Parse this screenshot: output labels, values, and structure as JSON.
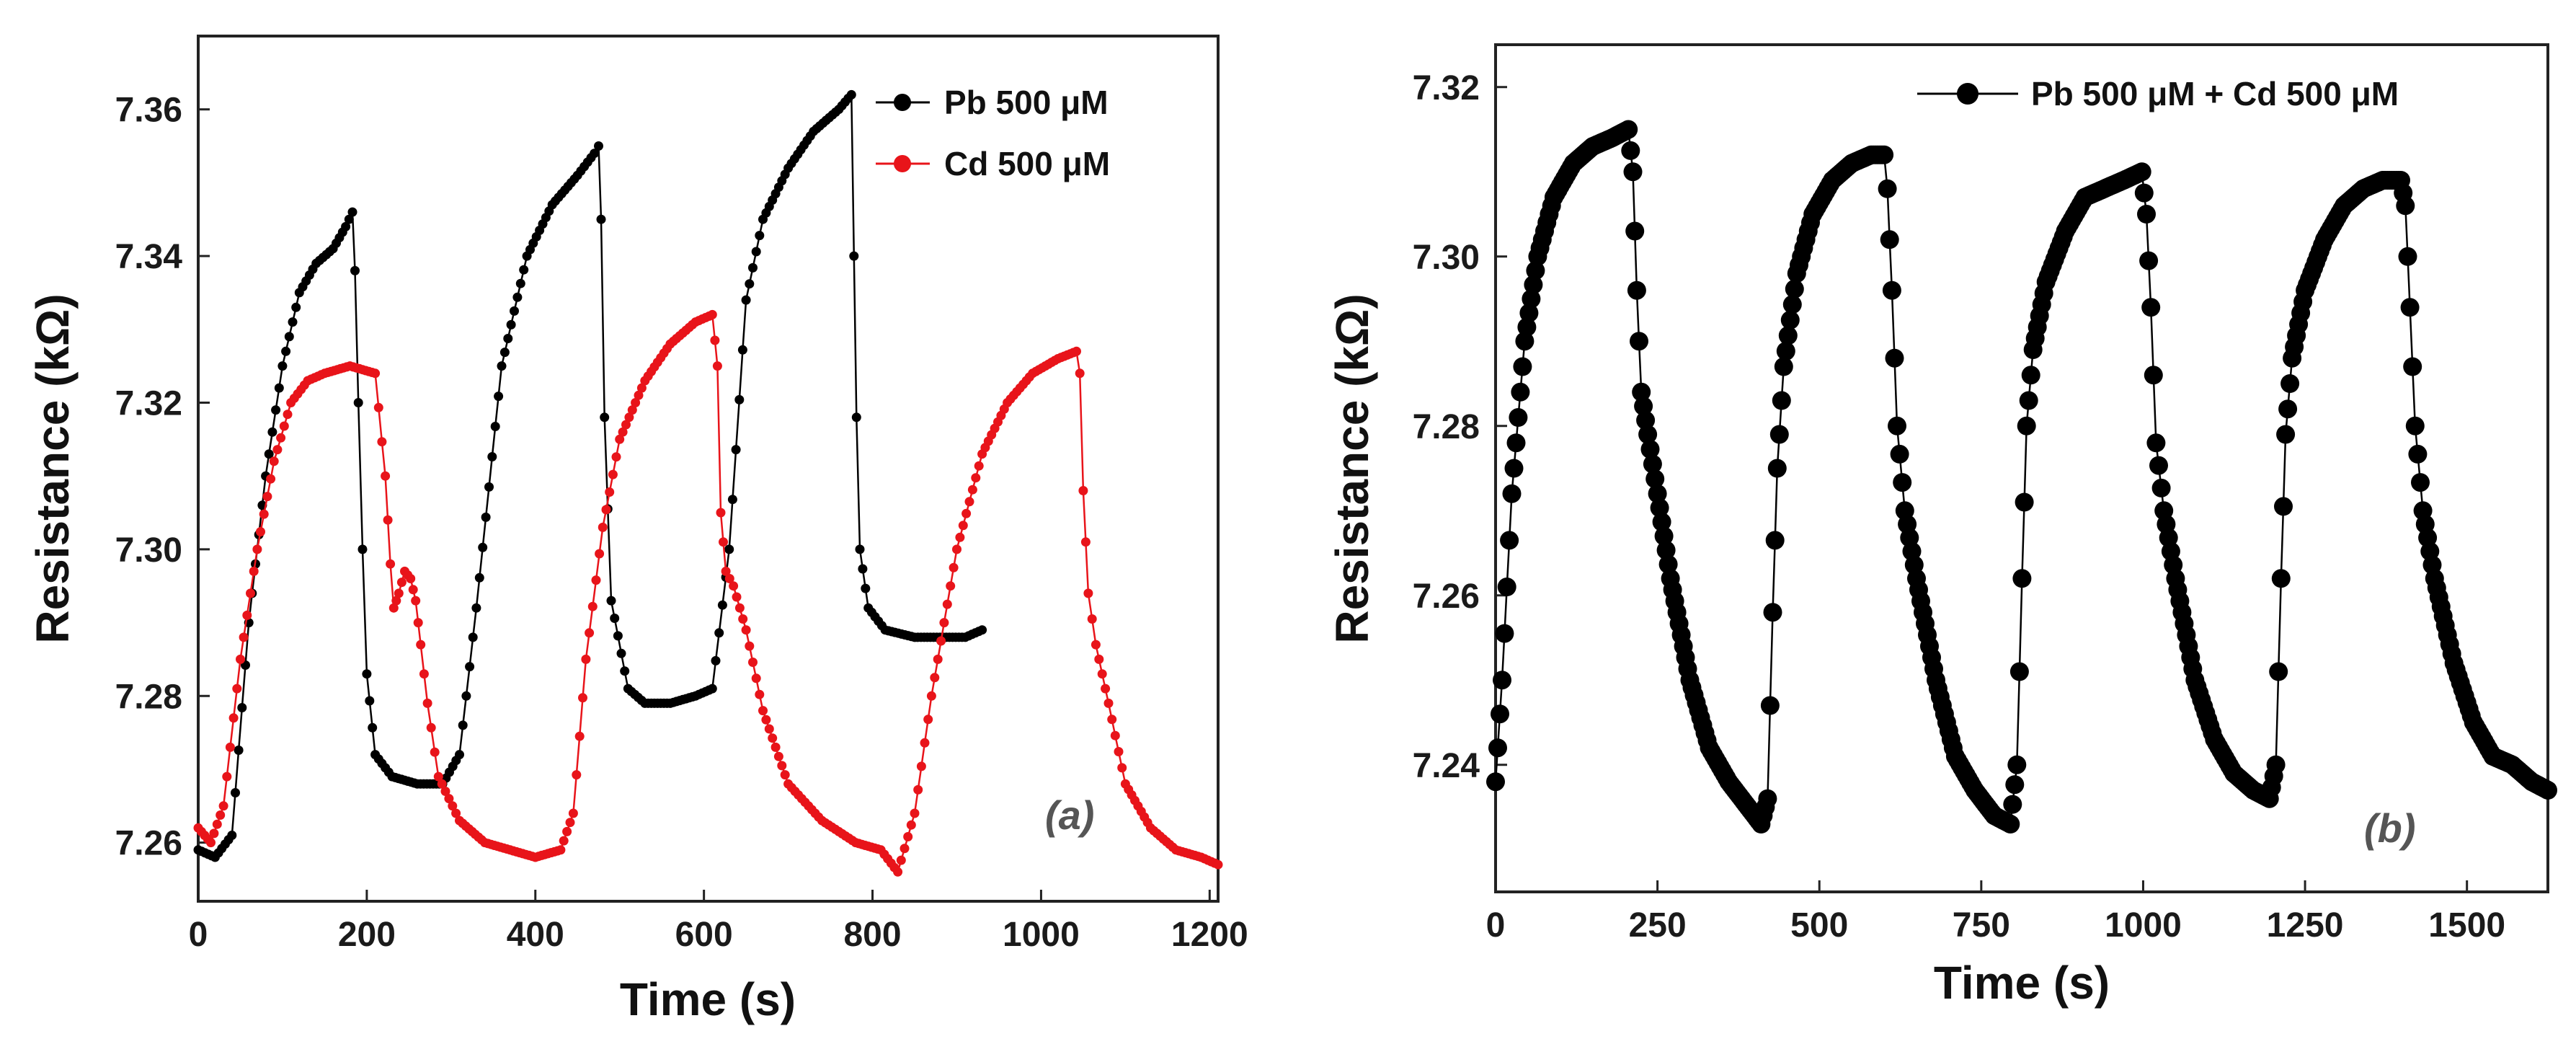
{
  "chart_data": [
    {
      "panel": "(a)",
      "type": "line",
      "xlabel": "Time (s)",
      "ylabel": "Resistance (kΩ)",
      "xlim": [
        0,
        1210
      ],
      "ylim": [
        7.252,
        7.37
      ],
      "xticks": [
        0,
        200,
        400,
        600,
        800,
        1000,
        1200
      ],
      "xtick_labels": [
        "0",
        "200",
        "400",
        "600",
        "800",
        "1000",
        "1200"
      ],
      "yticks": [
        7.26,
        7.28,
        7.3,
        7.32,
        7.34,
        7.36
      ],
      "ytick_labels": [
        "7.26",
        "7.28",
        "7.30",
        "7.32",
        "7.34",
        "7.36"
      ],
      "grid": false,
      "legend_position": "top-right",
      "series": [
        {
          "name": "Pb 500 μM",
          "color": "#000000",
          "x": [
            0,
            20,
            40,
            60,
            80,
            100,
            120,
            140,
            160,
            175,
            183,
            186,
            190,
            195,
            200,
            210,
            230,
            260,
            290,
            310,
            330,
            360,
            390,
            420,
            450,
            470,
            475,
            478,
            482,
            490,
            510,
            530,
            560,
            590,
            610,
            630,
            650,
            670,
            700,
            730,
            760,
            775,
            778,
            781,
            785,
            795,
            815,
            850,
            880,
            910,
            930
          ],
          "y": [
            7.259,
            7.258,
            7.261,
            7.29,
            7.31,
            7.325,
            7.335,
            7.339,
            7.341,
            7.344,
            7.346,
            7.338,
            7.32,
            7.3,
            7.283,
            7.272,
            7.269,
            7.268,
            7.268,
            7.272,
            7.292,
            7.325,
            7.34,
            7.347,
            7.351,
            7.354,
            7.355,
            7.345,
            7.318,
            7.293,
            7.281,
            7.279,
            7.279,
            7.28,
            7.281,
            7.3,
            7.334,
            7.345,
            7.352,
            7.357,
            7.36,
            7.362,
            7.34,
            7.318,
            7.3,
            7.292,
            7.289,
            7.288,
            7.288,
            7.288,
            7.289
          ]
        },
        {
          "name": "Cd 500 μM",
          "color": "#e8141a",
          "x": [
            0,
            15,
            30,
            50,
            70,
            90,
            110,
            130,
            150,
            180,
            210,
            222,
            228,
            232,
            238,
            245,
            252,
            258,
            264,
            272,
            285,
            310,
            340,
            370,
            400,
            430,
            445,
            460,
            480,
            500,
            530,
            560,
            590,
            610,
            616,
            620,
            626,
            635,
            650,
            670,
            700,
            740,
            780,
            810,
            830,
            850,
            870,
            900,
            930,
            960,
            990,
            1020,
            1042,
            1046,
            1050,
            1056,
            1065,
            1080,
            1100,
            1130,
            1160,
            1190,
            1210
          ],
          "y": [
            7.262,
            7.26,
            7.265,
            7.285,
            7.3,
            7.312,
            7.32,
            7.323,
            7.324,
            7.325,
            7.324,
            7.31,
            7.298,
            7.292,
            7.294,
            7.297,
            7.296,
            7.293,
            7.287,
            7.279,
            7.269,
            7.263,
            7.26,
            7.259,
            7.258,
            7.259,
            7.264,
            7.285,
            7.303,
            7.315,
            7.323,
            7.328,
            7.331,
            7.332,
            7.325,
            7.305,
            7.297,
            7.295,
            7.289,
            7.278,
            7.268,
            7.263,
            7.26,
            7.259,
            7.256,
            7.264,
            7.28,
            7.3,
            7.313,
            7.32,
            7.324,
            7.326,
            7.327,
            7.324,
            7.308,
            7.294,
            7.287,
            7.279,
            7.268,
            7.262,
            7.259,
            7.258,
            7.257
          ]
        }
      ]
    },
    {
      "panel": "(b)",
      "type": "line",
      "xlabel": "Time (s)",
      "ylabel": "Resistance (kΩ)",
      "xlim": [
        0,
        1625
      ],
      "ylim": [
        7.225,
        7.325
      ],
      "xticks": [
        0,
        250,
        500,
        750,
        1000,
        1250,
        1500
      ],
      "xtick_labels": [
        "0",
        "250",
        "500",
        "750",
        "1000",
        "1250",
        "1500"
      ],
      "yticks": [
        7.24,
        7.26,
        7.28,
        7.3,
        7.32
      ],
      "ytick_labels": [
        "7.24",
        "7.26",
        "7.28",
        "7.30",
        "7.32"
      ],
      "grid": false,
      "legend_position": "top-right",
      "series": [
        {
          "name": "Pb 500 μM + Cd 500 μM",
          "color": "#000000",
          "x": [
            0,
            10,
            25,
            45,
            65,
            90,
            120,
            150,
            180,
            205,
            212,
            218,
            225,
            235,
            250,
            270,
            300,
            330,
            360,
            390,
            410,
            420,
            428,
            435,
            445,
            465,
            490,
            520,
            550,
            580,
            600,
            605,
            612,
            620,
            632,
            650,
            680,
            710,
            740,
            770,
            795,
            805,
            813,
            820,
            830,
            850,
            880,
            910,
            940,
            970,
            998,
            1005,
            1012,
            1020,
            1032,
            1050,
            1080,
            1110,
            1140,
            1170,
            1195,
            1205,
            1213,
            1220,
            1230,
            1250,
            1280,
            1310,
            1340,
            1370,
            1398,
            1405,
            1412,
            1420,
            1432,
            1450,
            1480,
            1510,
            1540,
            1570,
            1600,
            1625
          ],
          "y": [
            7.238,
            7.25,
            7.272,
            7.29,
            7.3,
            7.307,
            7.311,
            7.313,
            7.314,
            7.315,
            7.31,
            7.296,
            7.284,
            7.279,
            7.272,
            7.262,
            7.25,
            7.242,
            7.238,
            7.235,
            7.233,
            7.236,
            7.258,
            7.275,
            7.287,
            7.298,
            7.305,
            7.309,
            7.311,
            7.312,
            7.312,
            7.308,
            7.296,
            7.28,
            7.27,
            7.262,
            7.25,
            7.241,
            7.237,
            7.234,
            7.233,
            7.24,
            7.262,
            7.28,
            7.289,
            7.297,
            7.303,
            7.307,
            7.308,
            7.309,
            7.31,
            7.305,
            7.294,
            7.278,
            7.27,
            7.262,
            7.25,
            7.243,
            7.239,
            7.237,
            7.236,
            7.24,
            7.262,
            7.279,
            7.288,
            7.296,
            7.302,
            7.306,
            7.308,
            7.309,
            7.309,
            7.306,
            7.294,
            7.28,
            7.27,
            7.262,
            7.252,
            7.245,
            7.241,
            7.24,
            7.238,
            7.237
          ]
        }
      ]
    }
  ],
  "panels": {
    "a": {
      "tag": "(a)",
      "ylabel": "Resistance (kΩ)",
      "xlabel": "Time (s)",
      "legend": [
        "Pb 500 μM",
        "Cd 500 μM"
      ]
    },
    "b": {
      "tag": "(b)",
      "ylabel": "Resistance (kΩ)",
      "xlabel": "Time (s)",
      "legend": [
        "Pb 500 μM + Cd 500 μM"
      ]
    }
  }
}
